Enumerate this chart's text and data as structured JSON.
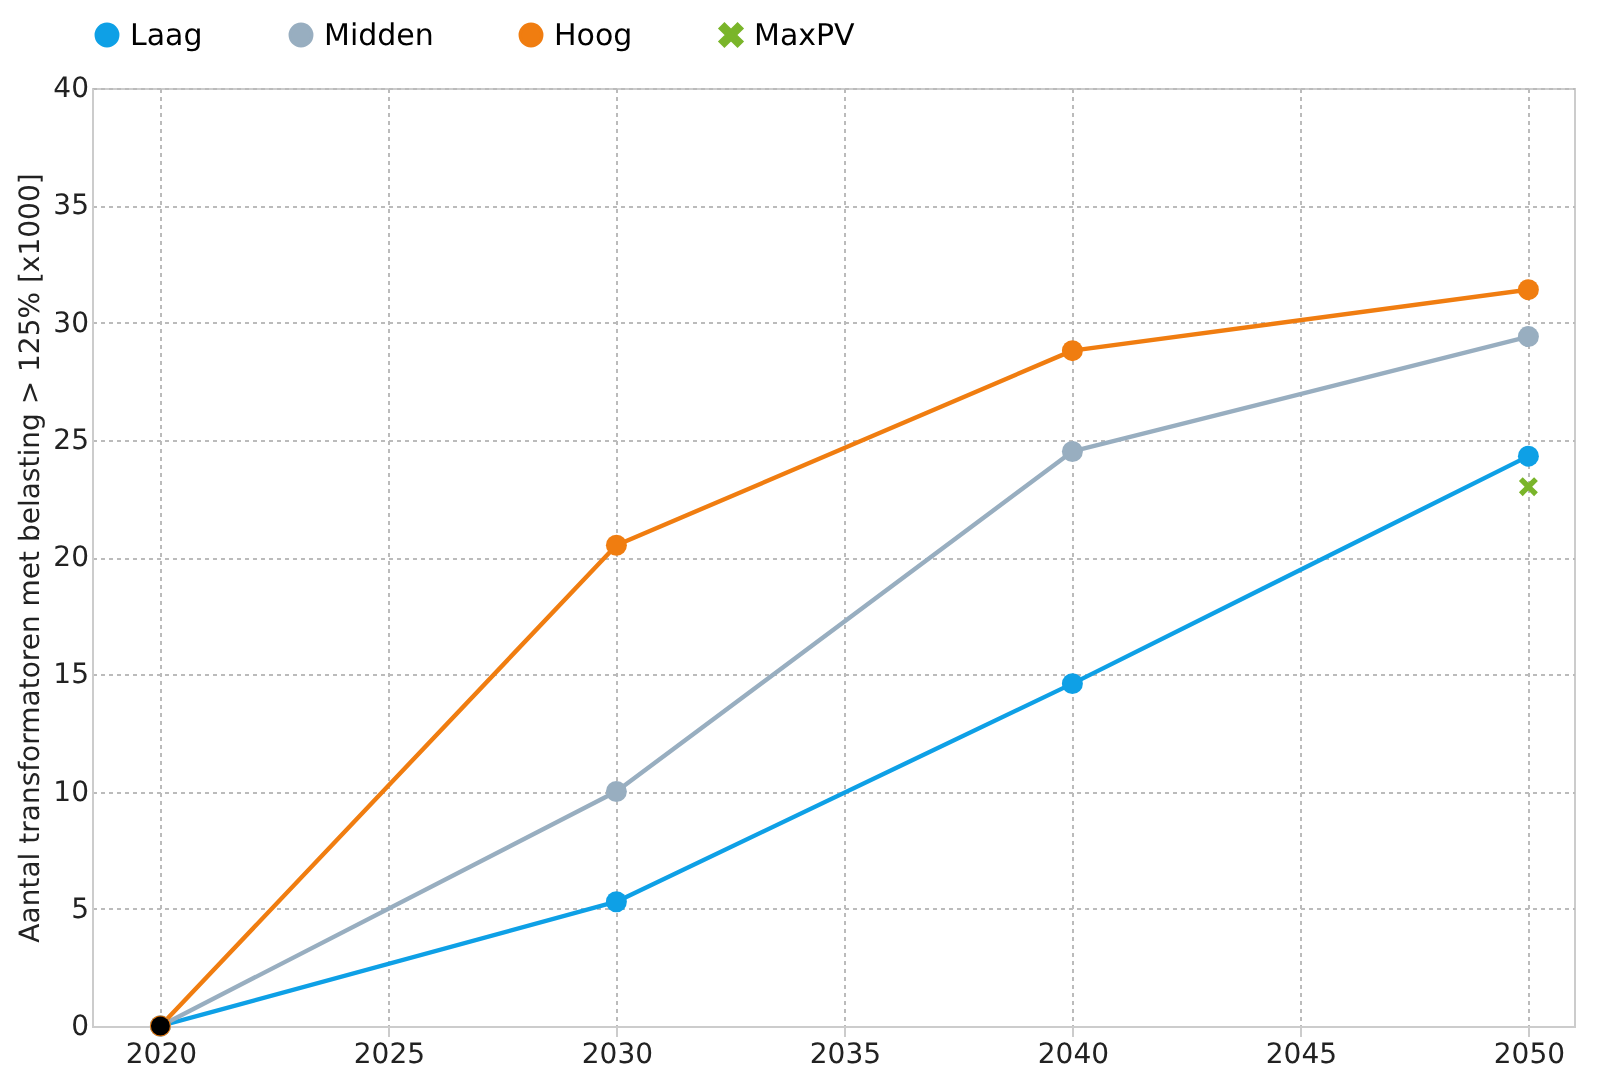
{
  "chart_data": {
    "type": "line",
    "ylabel": "Aantal transformatoren met belasting > 125% [x1000]",
    "x": [
      2020,
      2030,
      2040,
      2050
    ],
    "xlim": [
      2018.5,
      2051
    ],
    "xticks": [
      2020,
      2025,
      2030,
      2035,
      2040,
      2045,
      2050
    ],
    "ylim": [
      0,
      40
    ],
    "yticks": [
      0,
      5,
      10,
      15,
      20,
      25,
      30,
      35,
      40
    ],
    "grid": true,
    "legend": "top",
    "marker": "circle",
    "line_style": "solid",
    "series": [
      {
        "name": "Laag",
        "color": "#0ea0e6",
        "values": [
          0,
          5.3,
          14.6,
          24.3
        ]
      },
      {
        "name": "Midden",
        "color": "#98aec0",
        "values": [
          0,
          10.0,
          24.5,
          29.4
        ]
      },
      {
        "name": "Hoog",
        "color": "#f07d10",
        "values": [
          0,
          20.5,
          28.8,
          31.4
        ]
      },
      {
        "name": "MaxPV",
        "type": "scatter",
        "marker": "cross",
        "color": "#7ab52a",
        "x": [
          2050
        ],
        "values": [
          23.0
        ]
      },
      {
        "type": "scatter",
        "color": "#000000",
        "x": [
          2020
        ],
        "values": [
          0
        ]
      }
    ]
  }
}
